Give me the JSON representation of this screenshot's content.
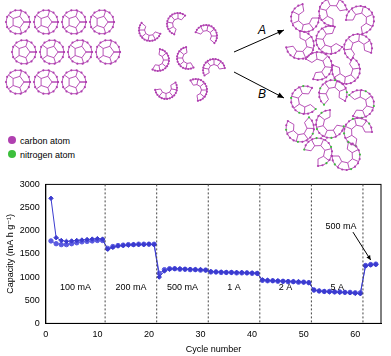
{
  "schematic": {
    "arrows": [
      "A",
      "B"
    ],
    "legend": [
      {
        "label": "carbon atom",
        "color": "#b040b0"
      },
      {
        "label": "nitrogen atom",
        "color": "#3cbf3c"
      }
    ]
  },
  "chart_data": {
    "type": "line",
    "x_label": "Cycle number",
    "y_label": "Capacity (mA h g⁻¹)",
    "x": [
      1,
      2,
      3,
      4,
      5,
      6,
      7,
      8,
      9,
      10,
      11,
      12,
      13,
      14,
      15,
      16,
      17,
      18,
      19,
      20,
      21,
      22,
      23,
      24,
      25,
      26,
      27,
      28,
      29,
      30,
      31,
      32,
      33,
      34,
      35,
      36,
      37,
      38,
      39,
      40,
      41,
      42,
      43,
      44,
      45,
      46,
      47,
      48,
      49,
      50,
      51,
      52,
      53,
      54,
      55,
      56,
      57,
      58,
      59,
      60,
      61,
      62,
      63,
      64
    ],
    "series": [
      {
        "color": "#3b3bcf",
        "marker": "diamond",
        "values": [
          2700,
          1850,
          1790,
          1770,
          1780,
          1790,
          1800,
          1810,
          1820,
          1830,
          1820,
          1600,
          1640,
          1670,
          1680,
          1690,
          1700,
          1700,
          1700,
          1710,
          1700,
          1000,
          1130,
          1170,
          1180,
          1180,
          1170,
          1170,
          1160,
          1160,
          1150,
          1120,
          1110,
          1110,
          1100,
          1100,
          1100,
          1100,
          1090,
          1090,
          1080,
          940,
          930,
          920,
          920,
          910,
          910,
          900,
          900,
          890,
          880,
          720,
          700,
          690,
          680,
          680,
          670,
          670,
          660,
          650,
          640,
          1240,
          1260,
          1270
        ]
      },
      {
        "color": "#5a5ae0",
        "marker": "circle",
        "values": [
          1780,
          1720,
          1700,
          1700,
          1720,
          1740,
          1760,
          1770,
          1780,
          1790,
          1790,
          1620,
          1660,
          1680,
          1690,
          1700,
          1700,
          1710,
          1710,
          1710,
          1710,
          1080,
          1160,
          1180,
          1180,
          1170,
          1170,
          1160,
          1160,
          1150,
          1150,
          1110,
          1110,
          1100,
          1100,
          1100,
          1090,
          1090,
          1090,
          1080,
          1080,
          930,
          920,
          920,
          910,
          910,
          900,
          900,
          890,
          890,
          880,
          720,
          700,
          690,
          690,
          680,
          680,
          670,
          670,
          660,
          660,
          1250,
          1270,
          1280
        ]
      }
    ],
    "rate_labels": [
      "100 mA",
      "200 mA",
      "500 mA",
      "1 A",
      "2 A",
      "5 A",
      "500 mA"
    ],
    "rate_boundaries": [
      11.5,
      21.5,
      31.5,
      41.5,
      51.5,
      61.5
    ],
    "xlim": [
      0,
      65
    ],
    "xticks": [
      0,
      10,
      20,
      30,
      40,
      50,
      60
    ],
    "ylim": [
      0,
      3000
    ],
    "yticks": [
      0,
      500,
      1000,
      1500,
      2000,
      2500,
      3000
    ],
    "grid": false
  }
}
